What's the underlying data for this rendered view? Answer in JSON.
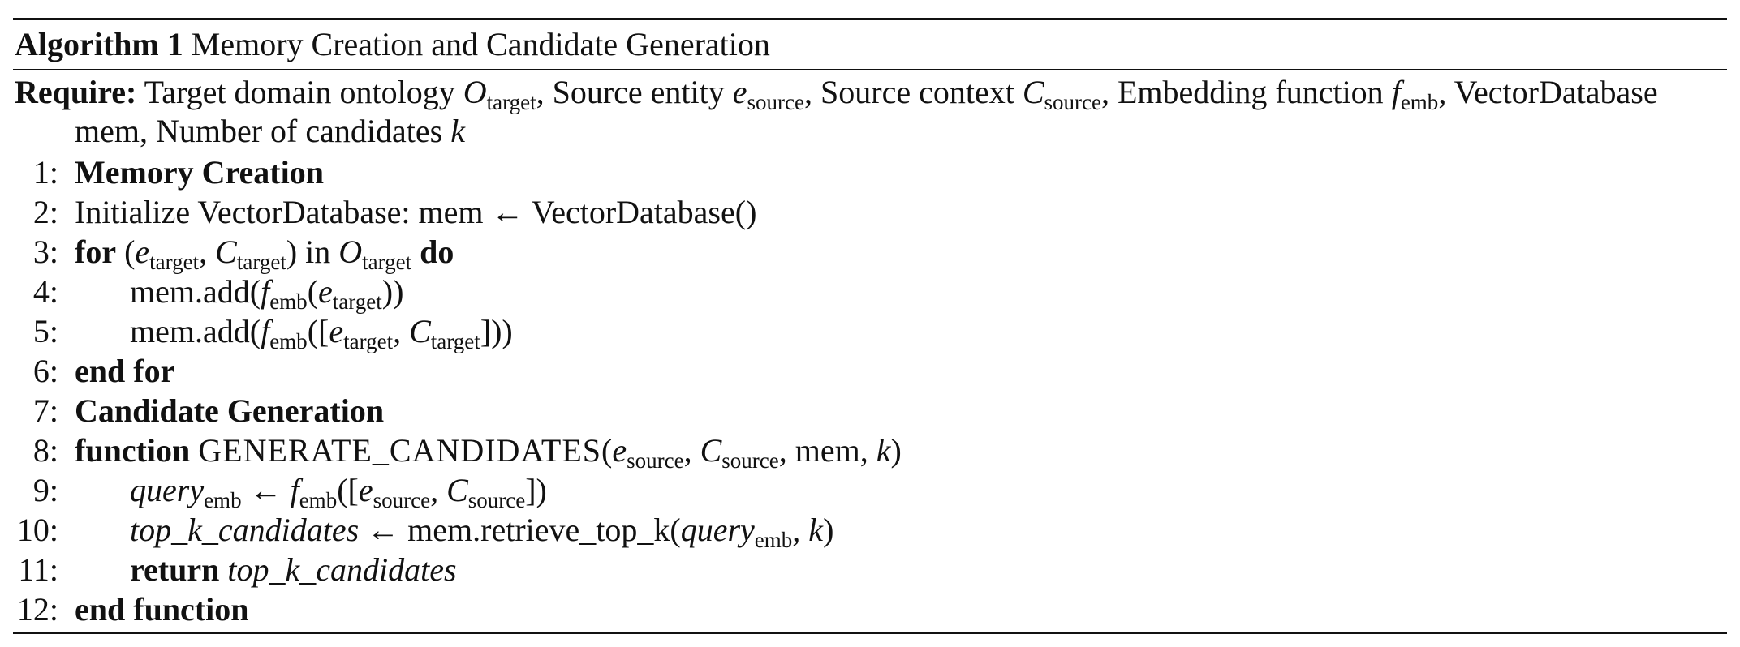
{
  "algorithm": {
    "label": "Algorithm 1",
    "title": "Memory Creation and Candidate Generation"
  },
  "require": {
    "keyword": "Require:",
    "t1": "Target domain ontology ",
    "O": "O",
    "O_sub": "target",
    "t2": ", Source entity ",
    "e": "e",
    "e_sub": "source",
    "t3": ", Source context ",
    "C": "C",
    "C_sub": "source",
    "t4": ", Embedding function ",
    "f": "f",
    "f_sub": "emb",
    "t5": ", VectorDatabase mem, Number of candidates ",
    "k": "k"
  },
  "lines": {
    "l1": {
      "num": "1:",
      "kw": "Memory Creation"
    },
    "l2": {
      "num": "2:",
      "text": "Initialize VectorDatabase: mem ← VectorDatabase()"
    },
    "l3": {
      "num": "3:",
      "kw_for": "for",
      "open": " (",
      "e": "e",
      "e_sub": "target",
      "comma": ", ",
      "C": "C",
      "C_sub": "target",
      "close_in": ") in ",
      "O": "O",
      "O_sub": "target",
      "kw_do": " do"
    },
    "l4": {
      "num": "4:",
      "pre": "mem.add(",
      "f": "f",
      "f_sub": "emb",
      "mid": "(",
      "e": "e",
      "e_sub": "target",
      "post": "))"
    },
    "l5": {
      "num": "5:",
      "pre": "mem.add(",
      "f": "f",
      "f_sub": "emb",
      "mid": "([",
      "e": "e",
      "e_sub": "target",
      "comma": ", ",
      "C": "C",
      "C_sub": "target",
      "post": "]))"
    },
    "l6": {
      "num": "6:",
      "kw": "end for"
    },
    "l7": {
      "num": "7:",
      "kw": "Candidate Generation"
    },
    "l8": {
      "num": "8:",
      "kw": "function",
      "name": "GENERATE_CANDIDATES",
      "open": "(",
      "e": "e",
      "e_sub": "source",
      "comma": ", ",
      "C": "C",
      "C_sub": "source",
      "rest": ", mem, ",
      "k": "k",
      "close": ")"
    },
    "l9": {
      "num": "9:",
      "q": "query",
      "q_sub": "emb",
      "arrow": " ← ",
      "f": "f",
      "f_sub": "emb",
      "mid": "([",
      "e": "e",
      "e_sub": "source",
      "comma": ", ",
      "C": "C",
      "C_sub": "source",
      "post": "])"
    },
    "l10": {
      "num": "10:",
      "var": "top_k_candidates",
      "mid": " ← mem.retrieve_top_k(",
      "q": "query",
      "q_sub": "emb",
      "comma": ", ",
      "k": "k",
      "close": ")"
    },
    "l11": {
      "num": "11:",
      "kw": "return",
      "var": "top_k_candidates"
    },
    "l12": {
      "num": "12:",
      "kw": "end function"
    }
  }
}
